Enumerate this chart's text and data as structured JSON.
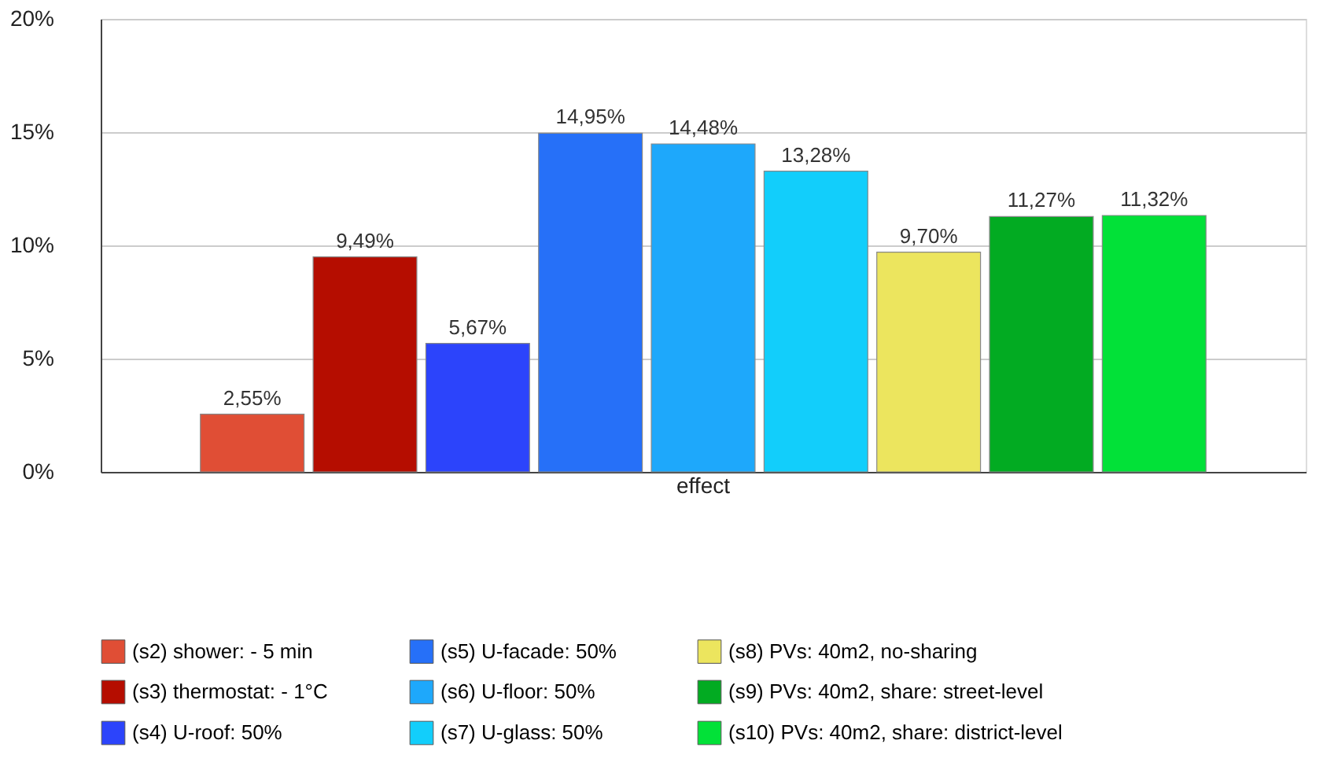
{
  "chart_data": {
    "type": "bar",
    "categories": [
      "effect"
    ],
    "ylim": [
      0,
      20
    ],
    "yticks": [
      {
        "value": 0,
        "label": "0%"
      },
      {
        "value": 5,
        "label": "5%"
      },
      {
        "value": 10,
        "label": "10%"
      },
      {
        "value": 15,
        "label": "15%"
      },
      {
        "value": 20,
        "label": "20%"
      }
    ],
    "grid": "y",
    "legend": "bottom",
    "series": [
      {
        "name": "(s2) shower: - 5 min",
        "color": "#e04e35",
        "values": [
          2.55
        ],
        "value_labels": [
          "2,55%"
        ]
      },
      {
        "name": "(s3) thermostat: - 1°C",
        "color": "#b50d00",
        "values": [
          9.49
        ],
        "value_labels": [
          "9,49%"
        ]
      },
      {
        "name": "(s4) U-roof: 50%",
        "color": "#2c44fb",
        "values": [
          5.67
        ],
        "value_labels": [
          "5,67%"
        ]
      },
      {
        "name": "(s5) U-facade: 50%",
        "color": "#2670f8",
        "values": [
          14.95
        ],
        "value_labels": [
          "14,95%"
        ]
      },
      {
        "name": "(s6) U-floor: 50%",
        "color": "#1ea8fb",
        "values": [
          14.48
        ],
        "value_labels": [
          "14,48%"
        ]
      },
      {
        "name": "(s7) U-glass: 50%",
        "color": "#12cefb",
        "values": [
          13.28
        ],
        "value_labels": [
          "13,28%"
        ]
      },
      {
        "name": "(s8) PVs: 40m2, no-sharing",
        "color": "#ece55e",
        "values": [
          9.7
        ],
        "value_labels": [
          "9,70%"
        ]
      },
      {
        "name": "(s9) PVs: 40m2, share: street-level",
        "color": "#02ab22",
        "values": [
          11.27
        ],
        "value_labels": [
          "11,27%"
        ]
      },
      {
        "name": "(s10) PVs: 40m2, share: district-level",
        "color": "#02e138",
        "values": [
          11.32
        ],
        "value_labels": [
          "11,32%"
        ]
      }
    ]
  }
}
